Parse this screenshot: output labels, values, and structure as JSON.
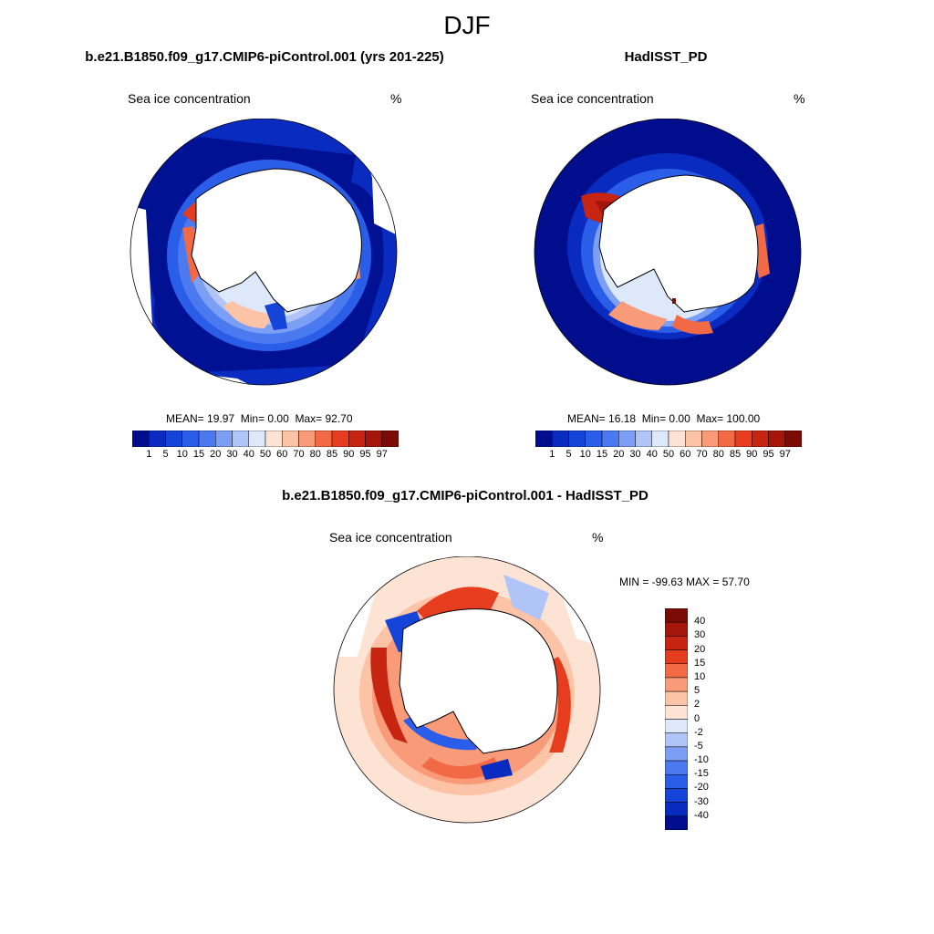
{
  "title": "DJF",
  "panels": [
    {
      "title": "b.e21.B1850.f09_g17.CMIP6-piControl.001 (yrs 201-225)",
      "variable": "Sea ice concentration",
      "units": "%",
      "stats": {
        "mean_label": "MEAN=",
        "mean": "19.97",
        "min_label": "Min=",
        "min": "0.00",
        "max_label": "Max=",
        "max": "92.70"
      }
    },
    {
      "title": "HadISST_PD",
      "variable": "Sea ice concentration",
      "units": "%",
      "stats": {
        "mean_label": "MEAN=",
        "mean": "16.18",
        "min_label": "Min=",
        "min": "0.00",
        "max_label": "Max=",
        "max": "100.00"
      }
    },
    {
      "title": "b.e21.B1850.f09_g17.CMIP6-piControl.001 - HadISST_PD",
      "variable": "Sea ice concentration",
      "units": "%",
      "minmax": "MIN = -99.63 MAX =  57.70"
    }
  ],
  "colorbar_abs": {
    "labels": [
      "1",
      "5",
      "10",
      "15",
      "20",
      "30",
      "40",
      "50",
      "60",
      "70",
      "80",
      "85",
      "90",
      "95",
      "97"
    ],
    "colors": [
      "#000d8c",
      "#0a2bc0",
      "#1544d8",
      "#2b5ee8",
      "#4a79f0",
      "#7c9ef4",
      "#b0c4f8",
      "#dde8fb",
      "#fde3d3",
      "#fcc3a7",
      "#f99a78",
      "#f26a45",
      "#e53d1e",
      "#c72411",
      "#a5160a",
      "#7a0b05"
    ]
  },
  "colorbar_diff": {
    "labels": [
      "40",
      "30",
      "20",
      "15",
      "10",
      "5",
      "2",
      "0",
      "-2",
      "-5",
      "-10",
      "-15",
      "-20",
      "-30",
      "-40"
    ],
    "colors": [
      "#7a0b05",
      "#a5160a",
      "#c72411",
      "#e53d1e",
      "#f26a45",
      "#f99a78",
      "#fcc3a7",
      "#fde3d3",
      "#dde8fb",
      "#b0c4f8",
      "#7c9ef4",
      "#4a79f0",
      "#2b5ee8",
      "#1544d8",
      "#0a2bc0",
      "#000d8c"
    ]
  }
}
